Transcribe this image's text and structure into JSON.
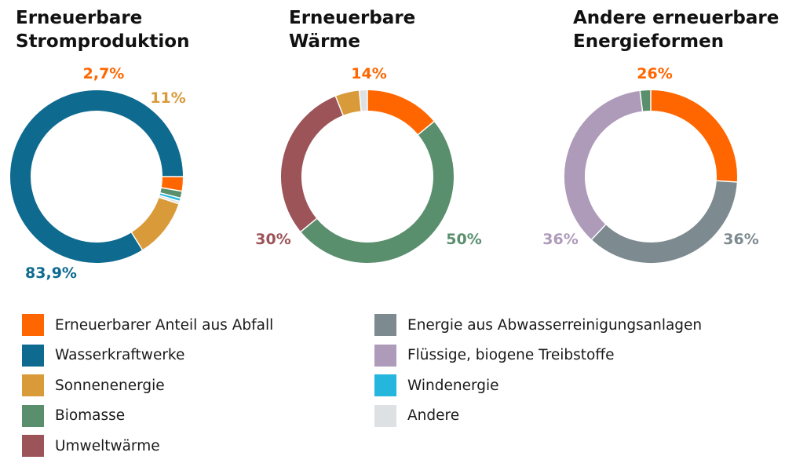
{
  "colors": {
    "abfall": "#ff6600",
    "wasserkraft": "#0e6a8f",
    "sonne": "#d99a3a",
    "biomasse": "#5a8f6e",
    "umwelt": "#9c5459",
    "abwasser": "#7d8a8f",
    "fluessig": "#ae9ab9",
    "wind": "#24b6dd",
    "andere": "#dde1e3"
  },
  "legend": {
    "left": [
      {
        "label": "Erneuerbarer Anteil aus Abfall",
        "color": "#ff6600"
      },
      {
        "label": "Wasserkraftwerke",
        "color": "#0e6a8f"
      },
      {
        "label": "Sonnenenergie",
        "color": "#d99a3a"
      },
      {
        "label": "Biomasse",
        "color": "#5a8f6e"
      },
      {
        "label": "Umweltwärme",
        "color": "#9c5459"
      }
    ],
    "right": [
      {
        "label": "Energie aus Abwasserreinigungsanlagen",
        "color": "#7d8a8f"
      },
      {
        "label": "Flüssige, biogene Treibstoffe",
        "color": "#ae9ab9"
      },
      {
        "label": "Windenergie",
        "color": "#24b6dd"
      },
      {
        "label": "Andere",
        "color": "#dde1e3"
      }
    ]
  },
  "chart_data": [
    {
      "type": "pie",
      "title": [
        "Erneuerbare",
        "Stromproduktion"
      ],
      "slices": [
        {
          "label": "Erneuerbarer Anteil aus Abfall",
          "value": 2.7,
          "color": "#ff6600",
          "data_label": "2,7%"
        },
        {
          "label": "Biomasse",
          "value": 1.3,
          "color": "#5a8f6e",
          "data_label": ""
        },
        {
          "label": "Windenergie",
          "value": 0.6,
          "color": "#24b6dd",
          "data_label": ""
        },
        {
          "label": "Andere",
          "value": 0.5,
          "color": "#dde1e3",
          "data_label": ""
        },
        {
          "label": "Sonnenenergie",
          "value": 11,
          "color": "#d99a3a",
          "data_label": "11%"
        },
        {
          "label": "Wasserkraftwerke",
          "value": 83.9,
          "color": "#0e6a8f",
          "data_label": "83,9%"
        }
      ]
    },
    {
      "type": "pie",
      "title": [
        "Erneuerbare",
        "Wärme"
      ],
      "slices": [
        {
          "label": "Erneuerbarer Anteil aus Abfall",
          "value": 14,
          "color": "#ff6600",
          "data_label": "14%"
        },
        {
          "label": "Biomasse",
          "value": 50,
          "color": "#5a8f6e",
          "data_label": "50%"
        },
        {
          "label": "Umweltwärme",
          "value": 30,
          "color": "#9c5459",
          "data_label": "30%"
        },
        {
          "label": "Sonnenenergie",
          "value": 4.5,
          "color": "#d99a3a",
          "data_label": ""
        },
        {
          "label": "Andere",
          "value": 1.5,
          "color": "#dde1e3",
          "data_label": ""
        }
      ]
    },
    {
      "type": "pie",
      "title": [
        "Andere erneuerbare",
        "Energieformen"
      ],
      "slices": [
        {
          "label": "Erneuerbarer Anteil aus Abfall",
          "value": 26,
          "color": "#ff6600",
          "data_label": "26%"
        },
        {
          "label": "Energie aus Abwasserreinigungsanlagen",
          "value": 36,
          "color": "#7d8a8f",
          "data_label": "36%"
        },
        {
          "label": "Flüssige, biogene Treibstoffe",
          "value": 36,
          "color": "#ae9ab9",
          "data_label": "36%"
        },
        {
          "label": "Biomasse",
          "value": 2,
          "color": "#5a8f6e",
          "data_label": ""
        }
      ]
    }
  ]
}
